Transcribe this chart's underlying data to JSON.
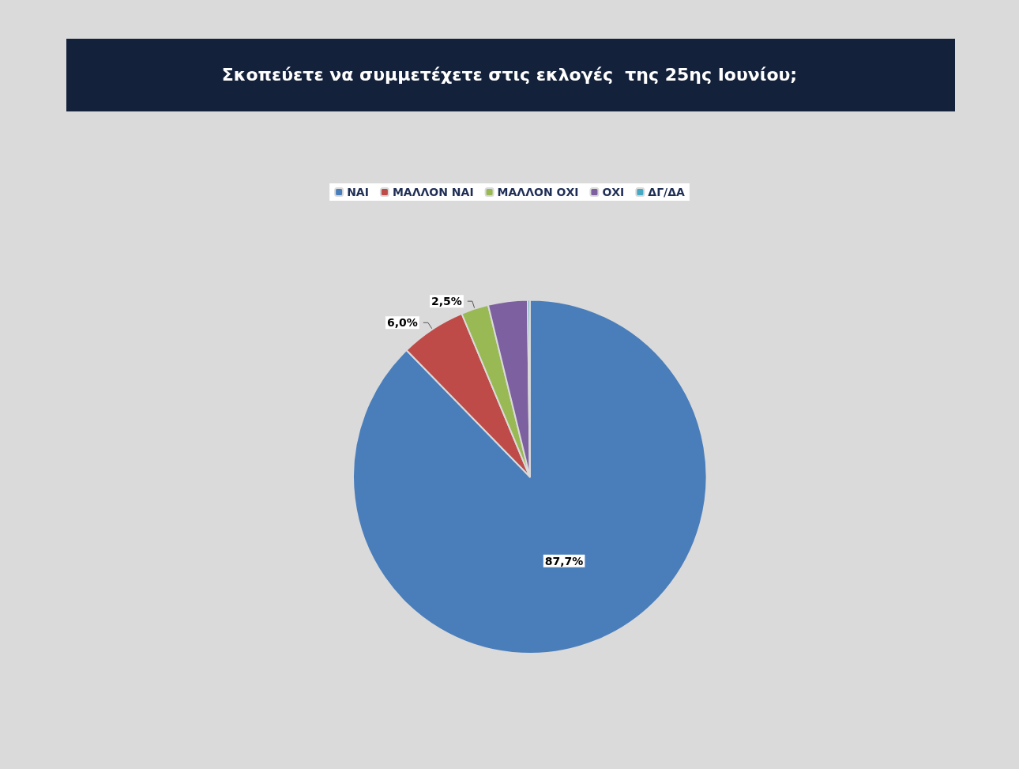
{
  "chart_data": {
    "type": "pie",
    "title": "Σκοπεύετε να συμμετέχετε στις εκλογές  της 25ης Ιουνίου;",
    "categories": [
      "ΝΑΙ",
      "ΜΑΛΛΟΝ ΝΑΙ",
      "ΜΑΛΛΟΝ ΟΧΙ",
      "ΟΧΙ",
      "ΔΓ/ΔΑ"
    ],
    "values": [
      87.7,
      6.0,
      2.5,
      3.6,
      0.2
    ],
    "colors": [
      "#4a7ebb",
      "#be4b48",
      "#98b954",
      "#7d60a0",
      "#46aac5"
    ],
    "value_labels": [
      "87,7%",
      "6,0%",
      "2,5%",
      null,
      null
    ],
    "legend": "top"
  }
}
